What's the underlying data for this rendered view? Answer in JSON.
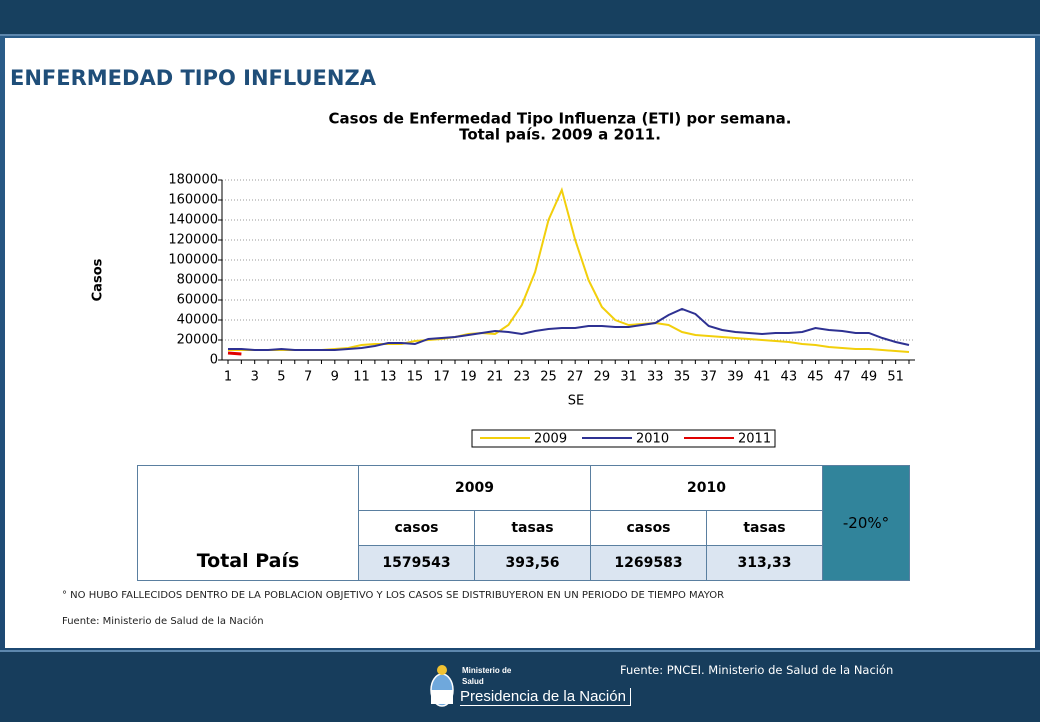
{
  "title": "ENFERMEDAD TIPO INFLUENZA",
  "chart_data": {
    "type": "line",
    "title": "Casos de Enfermedad Tipo Influenza (ETI) por semana.",
    "subtitle": "Total país. 2009 a 2011.",
    "y_label": "Casos",
    "x_label": "SE",
    "categories": [
      1,
      null,
      3,
      null,
      5,
      null,
      7,
      null,
      9,
      null,
      11,
      null,
      13,
      null,
      15,
      null,
      17,
      null,
      19,
      null,
      21,
      null,
      23,
      null,
      25,
      null,
      27,
      null,
      29,
      null,
      31,
      null,
      33,
      null,
      35,
      null,
      37,
      null,
      39,
      null,
      41,
      null,
      43,
      null,
      45,
      null,
      47,
      null,
      49,
      null,
      51,
      null
    ],
    "ylim": [
      0,
      180000
    ],
    "yticks": [
      0,
      20000,
      40000,
      60000,
      80000,
      100000,
      120000,
      140000,
      160000,
      180000
    ],
    "grid": true,
    "series": [
      {
        "name": "2009",
        "color": "#f2cf0c",
        "values": [
          10000,
          10000,
          10000,
          10000,
          10000,
          10000,
          10000,
          10000,
          11000,
          12000,
          15000,
          16000,
          16000,
          16000,
          19000,
          20000,
          21000,
          23000,
          26000,
          27000,
          26000,
          35000,
          55000,
          88000,
          140000,
          170000,
          120000,
          80000,
          53000,
          40000,
          35000,
          36000,
          37000,
          35000,
          28000,
          25000,
          24000,
          23000,
          22000,
          21000,
          20000,
          19000,
          18000,
          16000,
          15000,
          13000,
          12000,
          11000,
          11000,
          10000,
          9000,
          8000
        ]
      },
      {
        "name": "2010",
        "color": "#2e3192",
        "values": [
          11000,
          11000,
          10000,
          10000,
          11000,
          10000,
          10000,
          10000,
          10000,
          11000,
          12000,
          14000,
          17000,
          17000,
          16000,
          21000,
          22000,
          23000,
          25000,
          27000,
          29000,
          28000,
          26000,
          29000,
          31000,
          32000,
          32000,
          34000,
          34000,
          33000,
          33000,
          35000,
          37000,
          45000,
          51000,
          46000,
          34000,
          30000,
          28000,
          27000,
          26000,
          27000,
          27000,
          28000,
          32000,
          30000,
          29000,
          27000,
          27000,
          22000,
          18000,
          15000
        ]
      },
      {
        "name": "2011",
        "color": "#e00000",
        "values": [
          7000,
          6000,
          null,
          null,
          null,
          null,
          null,
          null,
          null,
          null,
          null,
          null,
          null,
          null,
          null,
          null,
          null,
          null,
          null,
          null,
          null,
          null,
          null,
          null,
          null,
          null,
          null,
          null,
          null,
          null,
          null,
          null,
          null,
          null,
          null,
          null,
          null,
          null,
          null,
          null,
          null,
          null,
          null,
          null,
          null,
          null,
          null,
          null,
          null,
          null,
          null,
          null
        ]
      }
    ]
  },
  "table": {
    "row_header": "Total País",
    "years": [
      "2009",
      "2010"
    ],
    "subheaders": [
      "casos",
      "tasas",
      "casos",
      "tasas"
    ],
    "values": [
      "1579543",
      "393,56",
      "1269583",
      "313,33"
    ],
    "change": "-20%°"
  },
  "notes": [
    "° NO HUBO FALLECIDOS DENTRO DE LA POBLACION OBJETIVO Y LOS CASOS SE DISTRIBUYERON EN UN PERIODO DE TIEMPO MAYOR",
    "Fuente: Ministerio de Salud de la Nación"
  ],
  "footer": {
    "source": "Fuente: PNCEI. Ministerio de Salud de la Nación",
    "logo": [
      "Ministerio de",
      "Salud",
      "Presidencia de la Nación"
    ]
  }
}
